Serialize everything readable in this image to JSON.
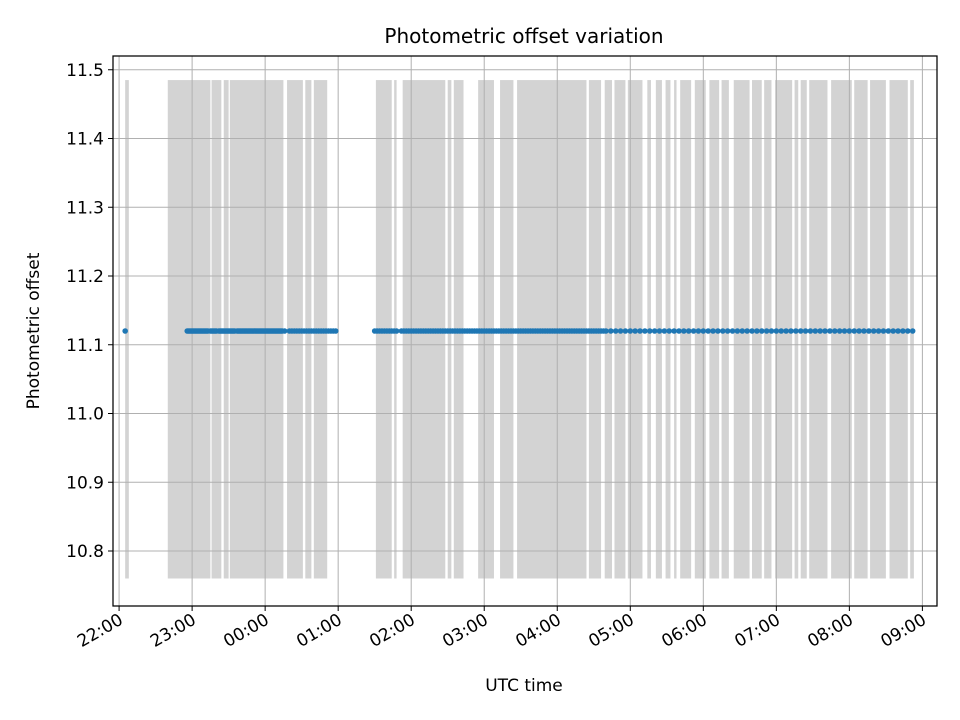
{
  "chart_data": {
    "type": "scatter",
    "title": "Photometric offset variation",
    "xlabel": "UTC time",
    "ylabel": "Photometric offset",
    "x_tick_labels": [
      "22:00",
      "23:00",
      "00:00",
      "01:00",
      "02:00",
      "03:00",
      "04:00",
      "05:00",
      "06:00",
      "07:00",
      "08:00",
      "09:00"
    ],
    "y_tick_labels": [
      "10.8",
      "10.9",
      "11.0",
      "11.1",
      "11.2",
      "11.3",
      "11.4",
      "11.5"
    ],
    "grid": true,
    "xlim": [
      "21:55",
      "09:12"
    ],
    "ylim": [
      10.72,
      11.52
    ],
    "point_color": "#1f77b4",
    "bar_color": "#d3d3d3",
    "series": [
      {
        "y_value": 11.12,
        "x": [
          "22:05",
          "22:56",
          "22:57",
          "22:58",
          "22:59",
          "23:00",
          "23:01",
          "23:02",
          "23:03",
          "23:04",
          "23:05",
          "23:06",
          "23:07",
          "23:08",
          "23:09",
          "23:10",
          "23:11",
          "23:12",
          "23:13",
          "23:15",
          "23:16",
          "23:17",
          "23:18",
          "23:19",
          "23:20",
          "23:22",
          "23:23",
          "23:24",
          "23:25",
          "23:26",
          "23:27",
          "23:28",
          "23:29",
          "23:30",
          "23:31",
          "23:32",
          "23:33",
          "23:34",
          "23:35",
          "23:37",
          "23:38",
          "23:39",
          "23:40",
          "23:41",
          "23:42",
          "23:43",
          "23:44",
          "23:45",
          "23:46",
          "23:47",
          "23:48",
          "23:49",
          "23:50",
          "23:51",
          "23:52",
          "23:53",
          "23:54",
          "23:55",
          "23:56",
          "23:57",
          "23:58",
          "23:59",
          "00:00",
          "00:01",
          "00:02",
          "00:03",
          "00:04",
          "00:05",
          "00:06",
          "00:07",
          "00:08",
          "00:09",
          "00:10",
          "00:11",
          "00:12",
          "00:13",
          "00:14",
          "00:16",
          "00:20",
          "00:22",
          "00:24",
          "00:26",
          "00:28",
          "00:30",
          "00:32",
          "00:34",
          "00:36",
          "00:38",
          "00:40",
          "00:42",
          "00:44",
          "00:46",
          "00:48",
          "00:50",
          "00:52",
          "00:54",
          "00:56",
          "00:58",
          "01:30",
          "01:32",
          "01:34",
          "01:36",
          "01:38",
          "01:40",
          "01:42",
          "01:44",
          "01:46",
          "01:48",
          "01:52",
          "01:54",
          "01:56",
          "01:58",
          "02:00",
          "02:02",
          "02:04",
          "02:06",
          "02:08",
          "02:10",
          "02:12",
          "02:14",
          "02:16",
          "02:18",
          "02:20",
          "02:22",
          "02:24",
          "02:26",
          "02:28",
          "02:30",
          "02:32",
          "02:34",
          "02:36",
          "02:38",
          "02:40",
          "02:42",
          "02:44",
          "02:46",
          "02:48",
          "02:50",
          "02:52",
          "02:54",
          "02:56",
          "02:58",
          "03:00",
          "03:02",
          "03:04",
          "03:06",
          "03:08",
          "03:10",
          "03:12",
          "03:14",
          "03:16",
          "03:18",
          "03:20",
          "03:22",
          "03:24",
          "03:26",
          "03:28",
          "03:30",
          "03:32",
          "03:34",
          "03:36",
          "03:38",
          "03:40",
          "03:42",
          "03:44",
          "03:46",
          "03:48",
          "03:50",
          "03:52",
          "03:54",
          "03:56",
          "03:58",
          "04:00",
          "04:02",
          "04:04",
          "04:06",
          "04:08",
          "04:10",
          "04:12",
          "04:14",
          "04:16",
          "04:18",
          "04:20",
          "04:22",
          "04:24",
          "04:26",
          "04:28",
          "04:30",
          "04:32",
          "04:34",
          "04:36",
          "04:38",
          "04:40",
          "04:44",
          "04:48",
          "04:52",
          "04:56",
          "05:00",
          "05:04",
          "05:08",
          "05:12",
          "05:16",
          "05:20",
          "05:24",
          "05:28",
          "05:32",
          "05:36",
          "05:40",
          "05:44",
          "05:48",
          "05:52",
          "05:56",
          "06:00",
          "06:04",
          "06:08",
          "06:12",
          "06:16",
          "06:20",
          "06:24",
          "06:28",
          "06:32",
          "06:36",
          "06:40",
          "06:44",
          "06:48",
          "06:52",
          "06:56",
          "07:00",
          "07:04",
          "07:08",
          "07:12",
          "07:16",
          "07:20",
          "07:24",
          "07:28",
          "07:32",
          "07:36",
          "07:40",
          "07:44",
          "07:48",
          "07:52",
          "07:56",
          "08:00",
          "08:04",
          "08:08",
          "08:12",
          "08:16",
          "08:20",
          "08:24",
          "08:28",
          "08:32",
          "08:36",
          "08:40",
          "08:44",
          "08:48",
          "08:52"
        ]
      }
    ],
    "coverage_intervals": [
      [
        "22:05",
        "22:08"
      ],
      [
        "22:40",
        "23:15"
      ],
      [
        "23:16",
        "23:24"
      ],
      [
        "23:26",
        "23:30"
      ],
      [
        "23:31",
        "00:15"
      ],
      [
        "00:18",
        "00:31"
      ],
      [
        "00:33",
        "00:38"
      ],
      [
        "00:40",
        "00:51"
      ],
      [
        "01:31",
        "01:44"
      ],
      [
        "01:46",
        "01:48"
      ],
      [
        "01:53",
        "02:28"
      ],
      [
        "02:30",
        "02:33"
      ],
      [
        "02:35",
        "02:43"
      ],
      [
        "02:55",
        "03:08"
      ],
      [
        "03:13",
        "03:24"
      ],
      [
        "03:27",
        "04:24"
      ],
      [
        "04:26",
        "04:36"
      ],
      [
        "04:39",
        "04:45"
      ],
      [
        "04:47",
        "04:56"
      ],
      [
        "04:58",
        "05:10"
      ],
      [
        "05:14",
        "05:17"
      ],
      [
        "05:21",
        "05:26"
      ],
      [
        "05:29",
        "05:33"
      ],
      [
        "05:36",
        "05:38"
      ],
      [
        "05:41",
        "05:50"
      ],
      [
        "05:53",
        "06:02"
      ],
      [
        "06:05",
        "06:13"
      ],
      [
        "06:15",
        "06:21"
      ],
      [
        "06:25",
        "06:38"
      ],
      [
        "06:40",
        "06:48"
      ],
      [
        "06:50",
        "06:56"
      ],
      [
        "06:59",
        "07:13"
      ],
      [
        "07:15",
        "07:18"
      ],
      [
        "07:20",
        "07:25"
      ],
      [
        "07:27",
        "07:42"
      ],
      [
        "07:45",
        "08:02"
      ],
      [
        "08:04",
        "08:15"
      ],
      [
        "08:17",
        "08:30"
      ],
      [
        "08:33",
        "08:48"
      ],
      [
        "08:50",
        "08:53"
      ]
    ],
    "coverage_ylim": [
      10.76,
      11.485
    ]
  }
}
